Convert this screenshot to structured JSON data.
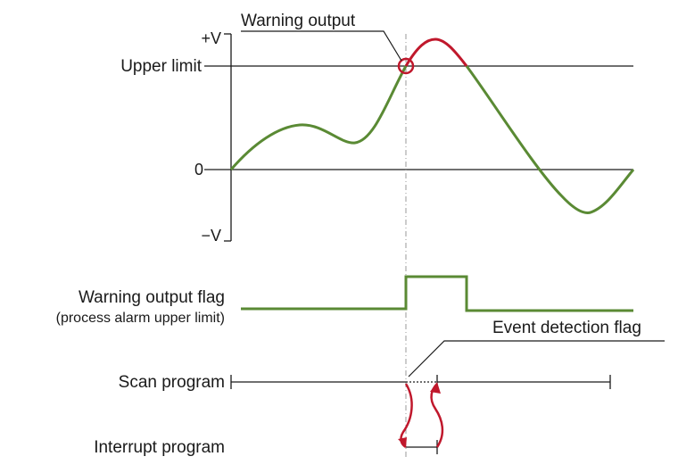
{
  "labels": {
    "warning_output": "Warning output",
    "plus_v": "+V",
    "upper_limit": "Upper limit",
    "zero": "0",
    "minus_v": "−V",
    "warning_output_flag": "Warning output flag",
    "process_alarm": "(process alarm upper limit)",
    "event_detection_flag": "Event detection flag",
    "scan_program": "Scan program",
    "interrupt_program": "Interrupt program"
  },
  "colors": {
    "signal": "#5a8a34",
    "alarm": "#c0182c",
    "axis": "#1a1a1a",
    "guide": "#9a9a9a"
  }
}
